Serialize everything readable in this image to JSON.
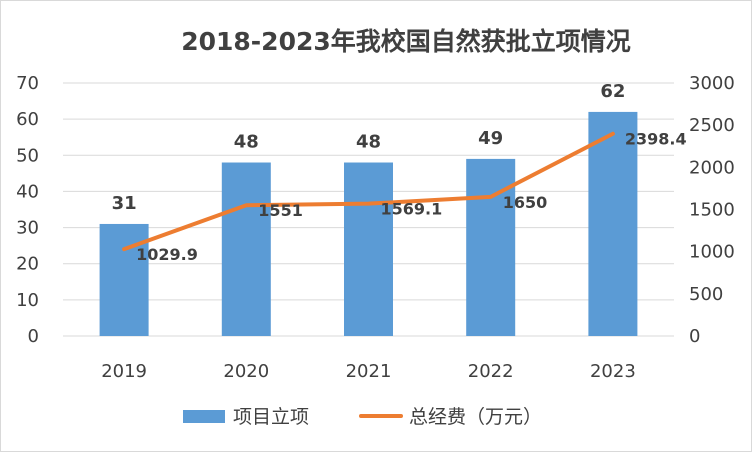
{
  "chart_data": {
    "type": "bar",
    "title": "2018-2023年我校国自然获批立项情况",
    "categories": [
      "2019",
      "2020",
      "2021",
      "2022",
      "2023"
    ],
    "series": [
      {
        "name": "项目立项",
        "type": "bar",
        "axis": "left",
        "values": [
          31,
          48,
          48,
          49,
          62
        ],
        "data_labels": [
          "31",
          "48",
          "48",
          "49",
          "62"
        ],
        "color": "#5B9BD5"
      },
      {
        "name": "总经费（万元）",
        "type": "line",
        "axis": "right",
        "values": [
          1029.9,
          1551,
          1569.1,
          1650,
          2398.4
        ],
        "data_labels": [
          "1029.9",
          "1551",
          "1569.1",
          "1650",
          "2398.4"
        ],
        "color": "#ED7D31"
      }
    ],
    "y_left": {
      "range": [
        0,
        70
      ],
      "ticks": [
        "0",
        "10",
        "20",
        "30",
        "40",
        "50",
        "60",
        "70"
      ]
    },
    "y_right": {
      "range": [
        0,
        3000
      ],
      "ticks": [
        "0",
        "500",
        "1000",
        "1500",
        "2000",
        "2500",
        "3000"
      ]
    },
    "grid": true,
    "legend_position": "bottom",
    "gridline_color": "#d9d9d9",
    "text_color": "#404040"
  }
}
